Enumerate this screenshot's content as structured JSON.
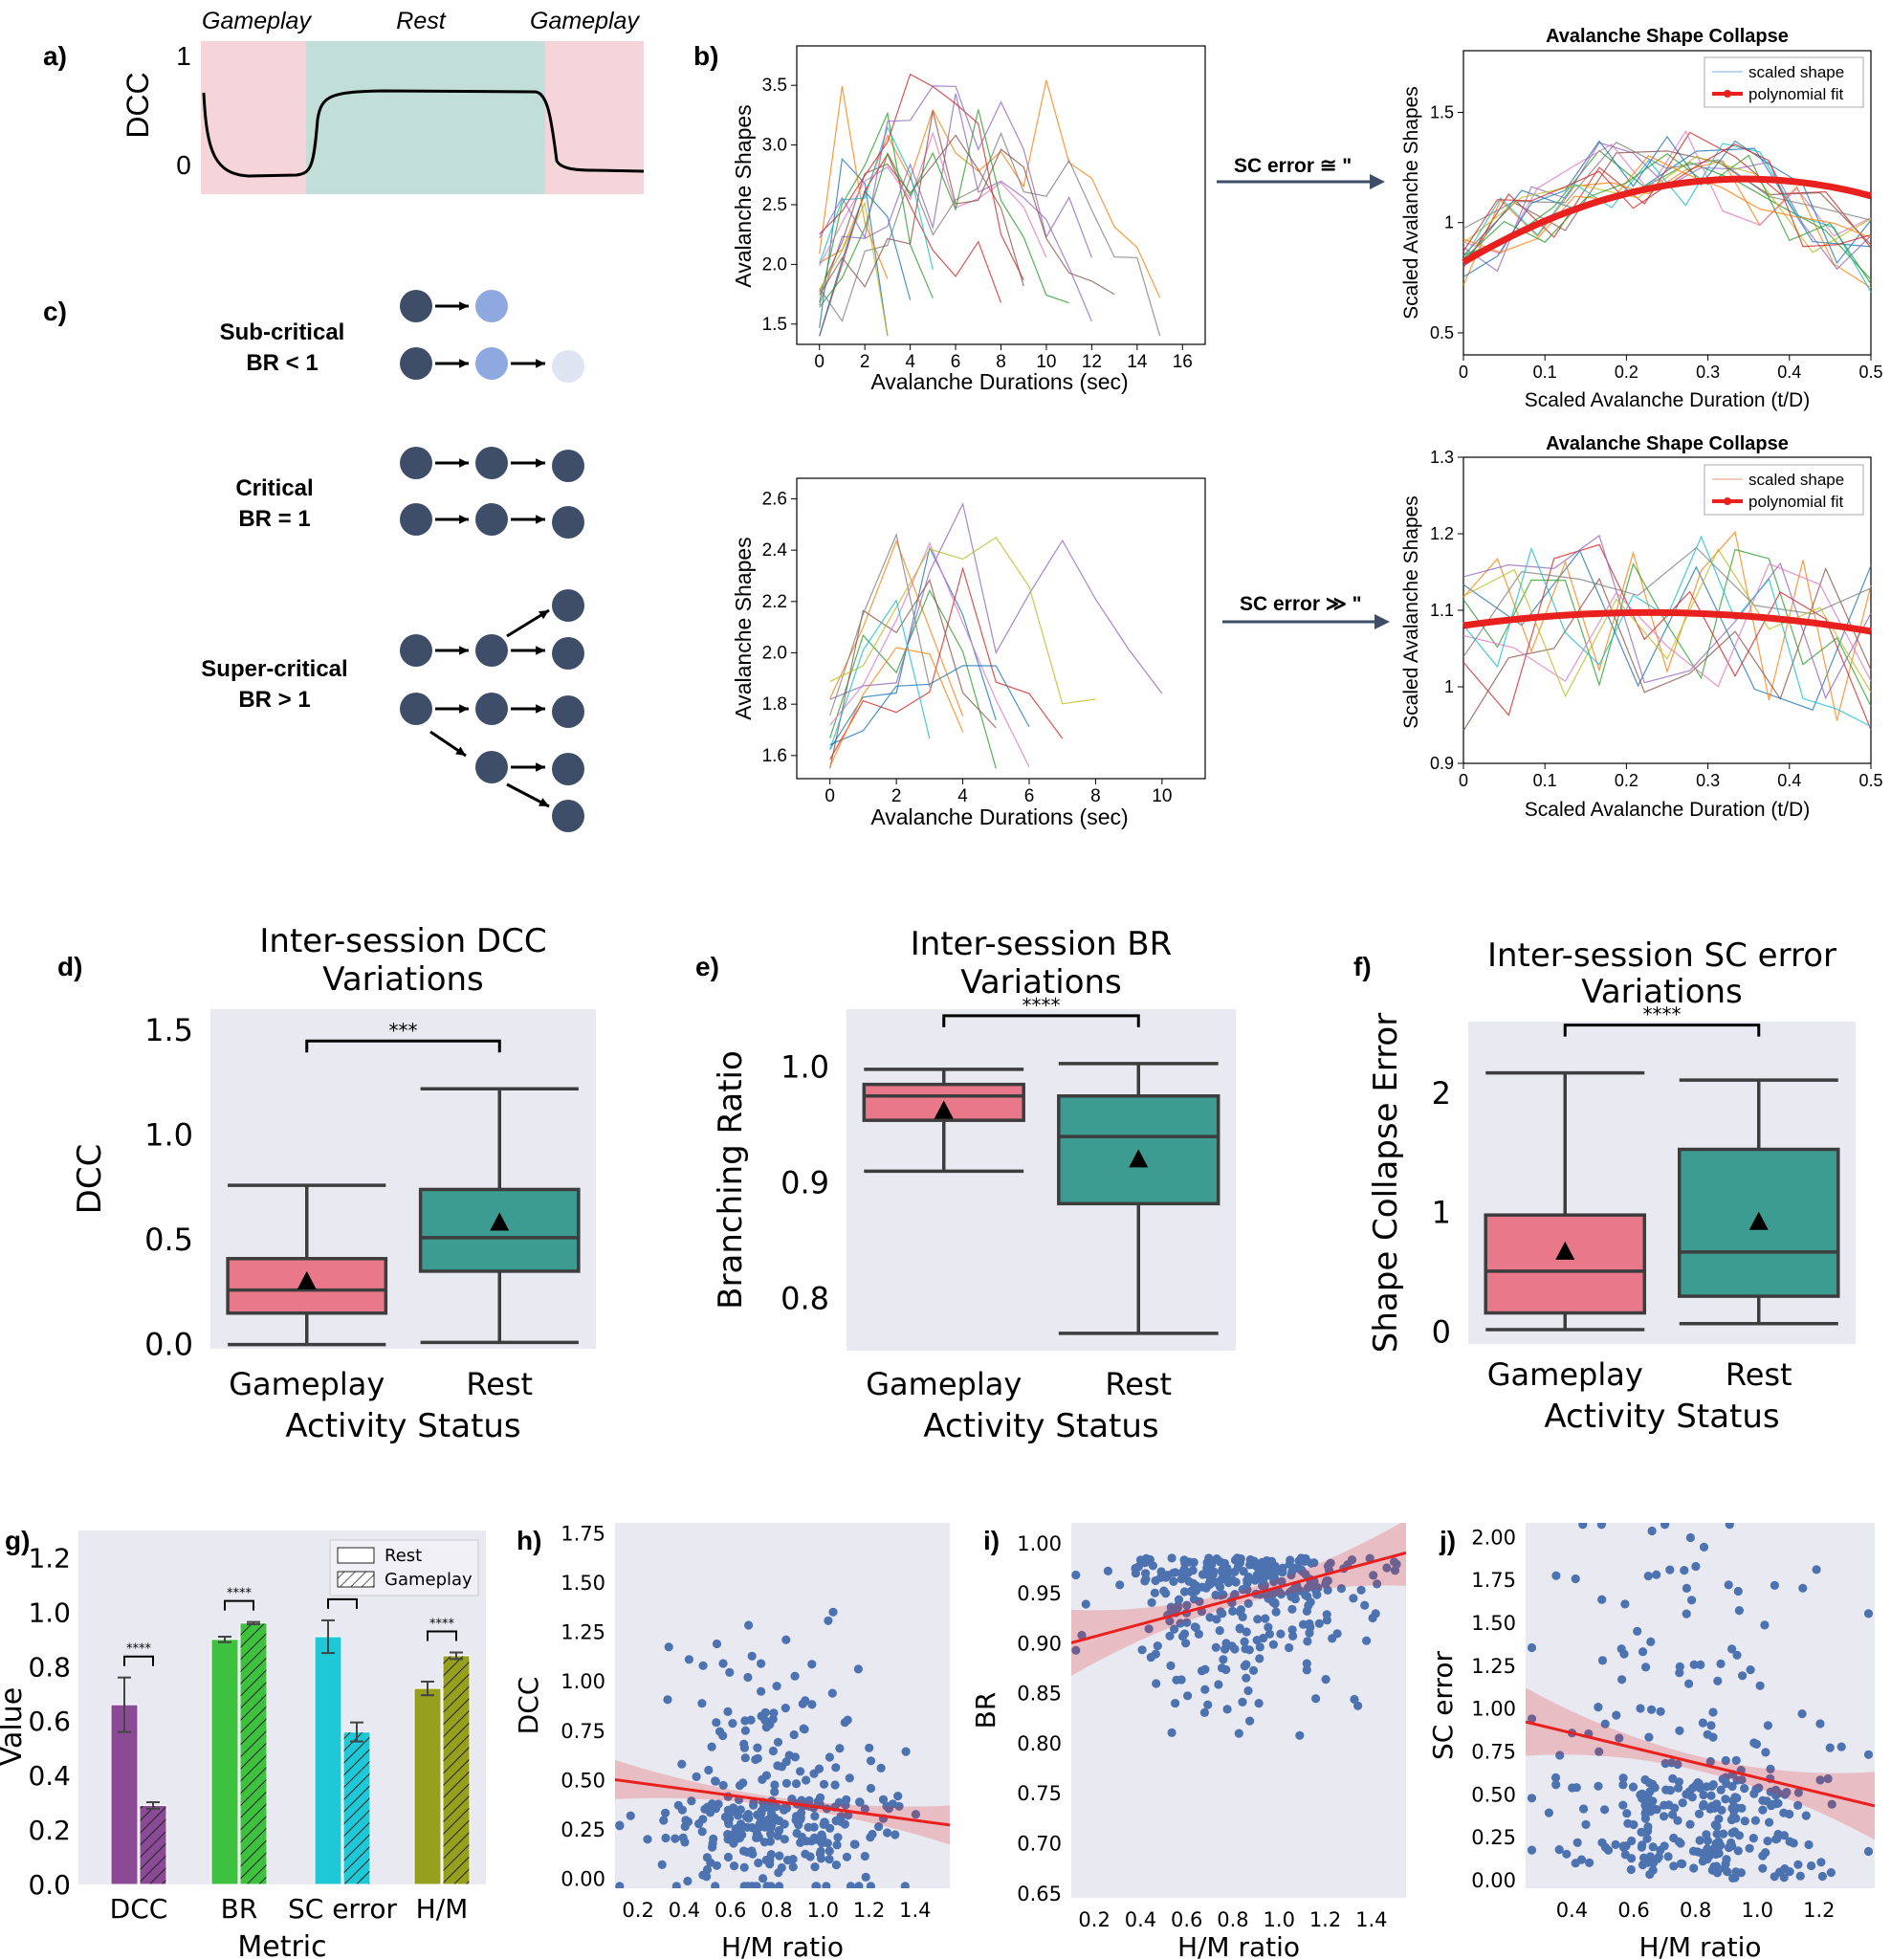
{
  "panel_labels": {
    "a": "a)",
    "b": "b)",
    "c": "c)",
    "d": "d)",
    "e": "e)",
    "f": "f)",
    "g": "g)",
    "h": "h)",
    "i": "i)",
    "j": "j)"
  },
  "panel_a": {
    "ylabel": "DCC",
    "yticks": [
      "1",
      "0"
    ],
    "phases": [
      {
        "label": "Gameplay",
        "color": "#f5d5d9"
      },
      {
        "label": "Rest",
        "color": "#c1ded9"
      },
      {
        "label": "Gameplay",
        "color": "#f5d5d9"
      }
    ]
  },
  "panel_b": {
    "arrow_top": "SC error ≅ \"",
    "arrow_bottom": "SC error ≫ \"",
    "raw_top": {
      "xlabel": "Avalanche Durations (sec)",
      "ylabel": "Avalanche Shapes",
      "xticks": [
        "0",
        "2",
        "4",
        "6",
        "8",
        "10",
        "12",
        "14",
        "16"
      ],
      "yticks": [
        "1.5",
        "2.0",
        "2.5",
        "3.0",
        "3.5"
      ]
    },
    "raw_bottom": {
      "xlabel": "Avalanche Durations (sec)",
      "ylabel": "Avalanche Shapes",
      "xticks": [
        "0",
        "2",
        "4",
        "6",
        "8",
        "10"
      ],
      "yticks": [
        "1.6",
        "1.8",
        "2.0",
        "2.2",
        "2.4",
        "2.6"
      ]
    },
    "collapse_top": {
      "title": "Avalanche Shape Collapse",
      "xlabel": "Scaled Avalanche Duration (t/D)",
      "ylabel": "Scaled Avalanche Shapes",
      "xticks": [
        "0",
        "0.1",
        "0.2",
        "0.3",
        "0.4",
        "0.5"
      ],
      "yticks": [
        "0.5",
        "1",
        "1.5"
      ],
      "legend": [
        "scaled shape",
        "polynomial fit"
      ]
    },
    "collapse_bottom": {
      "title": "Avalanche Shape Collapse",
      "xlabel": "Scaled Avalanche Duration (t/D)",
      "ylabel": "Scaled Avalanche Shapes",
      "xticks": [
        "0",
        "0.1",
        "0.2",
        "0.3",
        "0.4",
        "0.5"
      ],
      "yticks": [
        "0.9",
        "1",
        "1.1",
        "1.2",
        "1.3"
      ],
      "legend": [
        "scaled shape",
        "polynomial fit"
      ]
    }
  },
  "panel_c": {
    "states": [
      {
        "name": "Sub-critical",
        "br": "BR < 1"
      },
      {
        "name": "Critical",
        "br": "BR = 1"
      },
      {
        "name": "Super-critical",
        "br": "BR > 1"
      }
    ],
    "node_color": "#3f4e68"
  },
  "colors": {
    "gameplay": "#e8788a",
    "rest": "#3d9c92",
    "plot_bg": "#e9e9f2",
    "scatter": "#4c72b0",
    "fit": "#e8201e",
    "purple": "#8b4a96",
    "green": "#3ec13e",
    "cyan": "#1ec8d6",
    "olive": "#97a01c"
  },
  "chart_data": [
    {
      "panel": "d",
      "type": "box",
      "title": "Inter-session DCC\nVariations",
      "xlabel": "Activity Status",
      "ylabel": "DCC",
      "categories": [
        "Gameplay",
        "Rest"
      ],
      "yticks": [
        "0.0",
        "0.5",
        "1.0",
        "1.5"
      ],
      "ylim": [
        -0.02,
        1.6
      ],
      "boxes": [
        {
          "min": 0.0,
          "q1": 0.15,
          "median": 0.26,
          "q3": 0.41,
          "max": 0.76,
          "mean": 0.3
        },
        {
          "min": 0.01,
          "q1": 0.35,
          "median": 0.51,
          "q3": 0.74,
          "max": 1.22,
          "mean": 0.58
        }
      ],
      "significance": "***"
    },
    {
      "panel": "e",
      "type": "box",
      "title": "Inter-session BR\nVariations",
      "xlabel": "Activity Status",
      "ylabel": "Branching Ratio",
      "categories": [
        "Gameplay",
        "Rest"
      ],
      "yticks": [
        "0.8",
        "0.9",
        "1.0"
      ],
      "ylim": [
        0.755,
        1.05
      ],
      "boxes": [
        {
          "min": 0.91,
          "q1": 0.954,
          "median": 0.975,
          "q3": 0.985,
          "max": 0.998,
          "mean": 0.962
        },
        {
          "min": 0.77,
          "q1": 0.882,
          "median": 0.94,
          "q3": 0.975,
          "max": 1.003,
          "mean": 0.92
        }
      ],
      "significance": "****"
    },
    {
      "panel": "f",
      "type": "box",
      "title": "Inter-session SC error\nVariations",
      "xlabel": "Activity Status",
      "ylabel": "Shape Collapse Error",
      "categories": [
        "Gameplay",
        "Rest"
      ],
      "yticks": [
        "0",
        "1",
        "2"
      ],
      "ylim": [
        -0.1,
        2.6
      ],
      "boxes": [
        {
          "min": 0.02,
          "q1": 0.16,
          "median": 0.51,
          "q3": 0.98,
          "max": 2.17,
          "mean": 0.67
        },
        {
          "min": 0.07,
          "q1": 0.3,
          "median": 0.67,
          "q3": 1.53,
          "max": 2.11,
          "mean": 0.92
        }
      ],
      "significance": "****"
    },
    {
      "panel": "g",
      "type": "bar",
      "xlabel": "Metric",
      "ylabel": "Value",
      "categories": [
        "DCC",
        "BR",
        "SC error",
        "H/M"
      ],
      "yticks": [
        "0.0",
        "0.2",
        "0.4",
        "0.6",
        "0.8",
        "1.0",
        "1.2"
      ],
      "ylim": [
        0,
        1.3
      ],
      "legend": [
        "Rest",
        "Gameplay"
      ],
      "series": [
        {
          "name": "Rest",
          "values": [
            0.66,
            0.9,
            0.91,
            0.72
          ],
          "err": [
            0.1,
            0.01,
            0.06,
            0.025
          ]
        },
        {
          "name": "Gameplay",
          "values": [
            0.29,
            0.96,
            0.56,
            0.84
          ],
          "err": [
            0.012,
            0.004,
            0.035,
            0.012
          ]
        }
      ],
      "significance": [
        "****",
        "****",
        "****",
        "****"
      ]
    },
    {
      "panel": "h",
      "type": "scatter",
      "xlabel": "H/M ratio",
      "ylabel": "DCC",
      "xticks": [
        "0.2",
        "0.4",
        "0.6",
        "0.8",
        "1.0",
        "1.2",
        "1.4"
      ],
      "yticks": [
        "0.00",
        "0.25",
        "0.50",
        "0.75",
        "1.00",
        "1.25",
        "1.50",
        "1.75"
      ],
      "xlim": [
        0.1,
        1.55
      ],
      "ylim": [
        -0.05,
        1.8
      ],
      "fit": {
        "x": [
          0.1,
          1.55
        ],
        "y": [
          0.5,
          0.27
        ],
        "band": 0.06
      },
      "n_points": 320,
      "center": [
        0.8,
        0.4
      ],
      "spread": [
        0.25,
        0.25
      ]
    },
    {
      "panel": "i",
      "type": "scatter",
      "xlabel": "H/M ratio",
      "ylabel": "BR",
      "xticks": [
        "0.2",
        "0.4",
        "0.6",
        "0.8",
        "1.0",
        "1.2",
        "1.4"
      ],
      "yticks": [
        "0.65",
        "0.70",
        "0.75",
        "0.80",
        "0.85",
        "0.90",
        "0.95",
        "1.00"
      ],
      "xlim": [
        0.1,
        1.55
      ],
      "ylim": [
        0.645,
        1.02
      ],
      "fit": {
        "x": [
          0.1,
          1.55
        ],
        "y": [
          0.9,
          0.99
        ],
        "band": 0.02
      },
      "n_points": 320,
      "center": [
        0.85,
        0.95
      ],
      "spread": [
        0.25,
        0.045
      ]
    },
    {
      "panel": "j",
      "type": "scatter",
      "xlabel": "H/M ratio",
      "ylabel": "SC error",
      "xticks": [
        "0.4",
        "0.6",
        "0.8",
        "1.0",
        "1.2"
      ],
      "yticks": [
        "0.00",
        "0.25",
        "0.50",
        "0.75",
        "1.00",
        "1.25",
        "1.50",
        "1.75",
        "2.00"
      ],
      "xlim": [
        0.25,
        1.38
      ],
      "ylim": [
        -0.05,
        2.08
      ],
      "fit": {
        "x": [
          0.25,
          1.38
        ],
        "y": [
          0.92,
          0.43
        ],
        "band": 0.12
      },
      "n_points": 320,
      "center": [
        0.8,
        0.6
      ],
      "spread": [
        0.22,
        0.5
      ]
    }
  ]
}
